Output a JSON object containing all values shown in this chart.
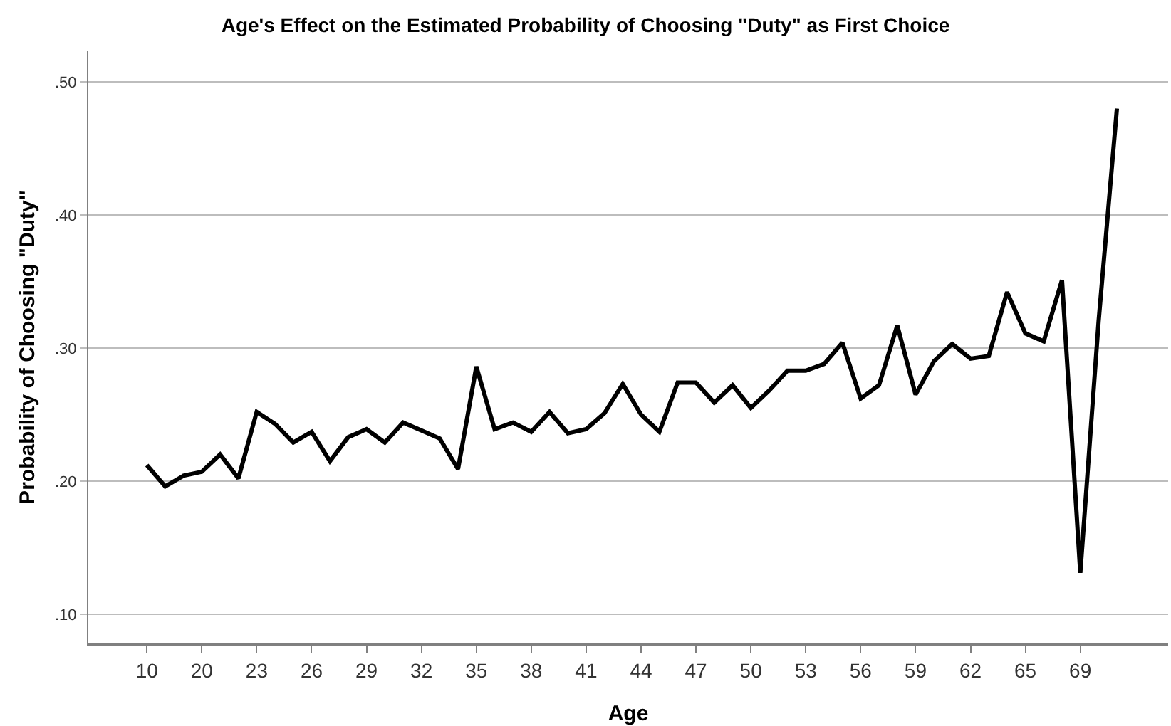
{
  "chart_data": {
    "type": "line",
    "title": "Age's Effect on the Estimated Probability of Choosing \"Duty\" as First Choice",
    "xlabel": "Age",
    "ylabel": "Probability of Choosing \"Duty\"",
    "categories": [
      "10",
      null,
      null,
      "20",
      null,
      null,
      "23",
      null,
      null,
      "26",
      null,
      null,
      "29",
      null,
      null,
      "32",
      null,
      null,
      "35",
      null,
      null,
      "38",
      null,
      null,
      "41",
      null,
      null,
      "44",
      null,
      null,
      "47",
      null,
      null,
      "50",
      null,
      null,
      "53",
      null,
      null,
      "56",
      null,
      null,
      "59",
      null,
      null,
      "62",
      null,
      null,
      "65",
      null,
      null,
      "69",
      null,
      null
    ],
    "series": [
      {
        "color": "#000000",
        "values": [
          0.212,
          0.196,
          0.204,
          0.207,
          0.22,
          0.202,
          0.252,
          0.243,
          0.229,
          0.237,
          0.215,
          0.233,
          0.239,
          0.229,
          0.244,
          0.238,
          0.232,
          0.209,
          0.286,
          0.239,
          0.244,
          0.237,
          0.252,
          0.236,
          0.239,
          0.251,
          0.273,
          0.25,
          0.237,
          0.274,
          0.274,
          0.259,
          0.272,
          0.255,
          0.268,
          0.283,
          0.283,
          0.288,
          0.304,
          0.262,
          0.272,
          0.317,
          0.265,
          0.29,
          0.303,
          0.292,
          0.294,
          0.342,
          0.311,
          0.305,
          0.351,
          0.131,
          0.32,
          0.48
        ]
      }
    ],
    "ylim": [
      0.078,
      0.523
    ],
    "yticks": [
      {
        "value": 0.1,
        "label": ".10"
      },
      {
        "value": 0.2,
        "label": ".20"
      },
      {
        "value": 0.3,
        "label": ".30"
      },
      {
        "value": 0.4,
        "label": ".40"
      },
      {
        "value": 0.5,
        "label": ".50"
      }
    ],
    "grid": "y",
    "marker": "none",
    "line_style": "solid"
  }
}
